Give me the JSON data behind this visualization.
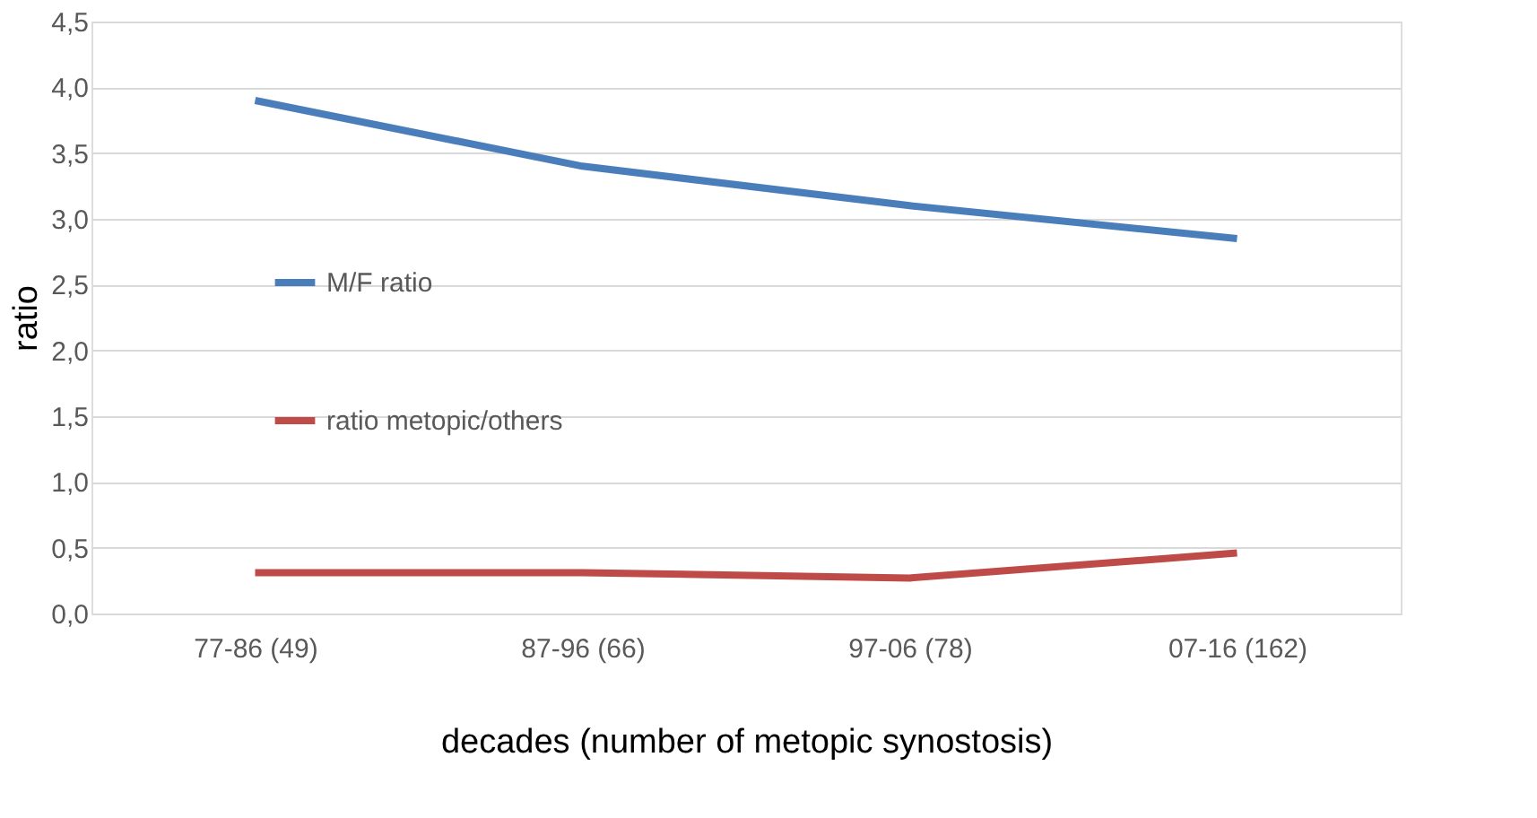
{
  "chart_data": {
    "type": "line",
    "xlabel": "decades (number of metopic synostosis)",
    "ylabel": "ratio",
    "categories": [
      "77-86 (49)",
      "87-96 (66)",
      "97-06 (78)",
      "07-16 (162)"
    ],
    "series": [
      {
        "name": "M/F ratio",
        "color": "#4a7ebb",
        "values": [
          3.9,
          3.4,
          3.1,
          2.85
        ]
      },
      {
        "name": "ratio metopic/others",
        "color": "#be4b48",
        "values": [
          0.31,
          0.31,
          0.27,
          0.46
        ]
      }
    ],
    "ylim": [
      0,
      4.5
    ],
    "yticks": [
      {
        "value": 0,
        "label": "0,0"
      },
      {
        "value": 0.5,
        "label": "0,5"
      },
      {
        "value": 1,
        "label": "1,0"
      },
      {
        "value": 1.5,
        "label": "1,5"
      },
      {
        "value": 2,
        "label": "2,0"
      },
      {
        "value": 2.5,
        "label": "2,5"
      },
      {
        "value": 3,
        "label": "3,0"
      },
      {
        "value": 3.5,
        "label": "3,5"
      },
      {
        "value": 4,
        "label": "4,0"
      },
      {
        "value": 4.5,
        "label": "4,5"
      }
    ],
    "grid": "y",
    "legend": "left",
    "marker": "none",
    "line_style": "solid"
  }
}
